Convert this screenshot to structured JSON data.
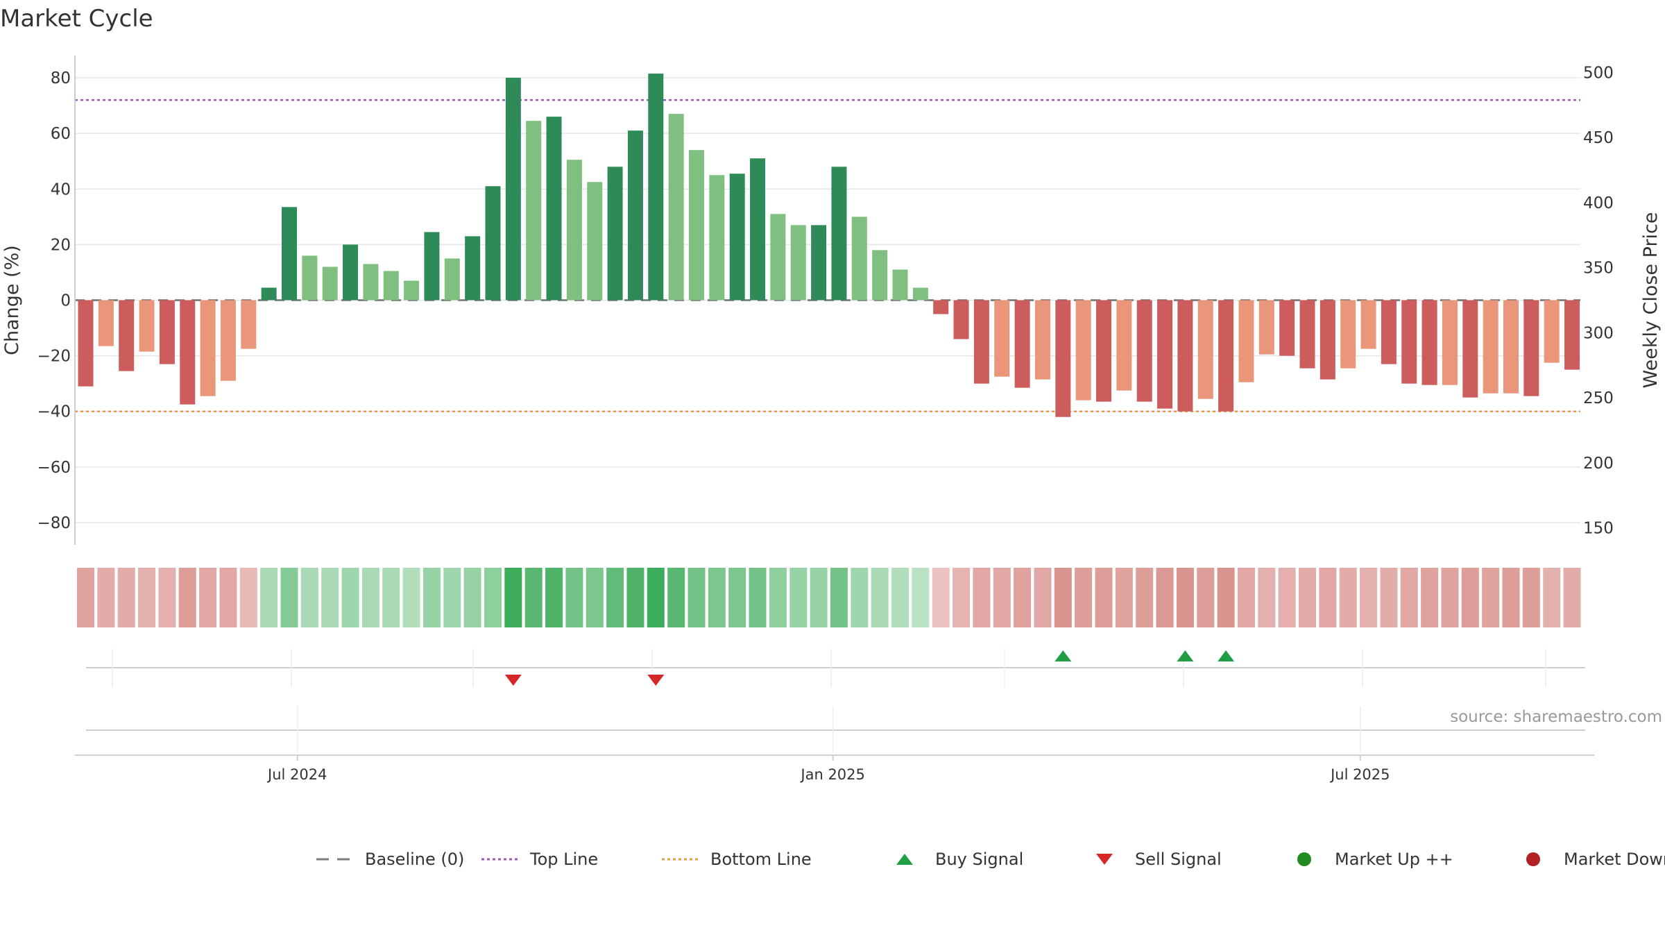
{
  "chart_data": {
    "type": "bar",
    "title": "Market Cycle",
    "ylabel": "Change (%)",
    "y2label": "Weekly Close Price",
    "ylim": [
      -88,
      88
    ],
    "y2lim": [
      137,
      513
    ],
    "yticks": [
      80,
      60,
      40,
      20,
      0,
      -20,
      -40,
      -60,
      -80
    ],
    "yticklabels": [
      "80",
      "60",
      "40",
      "20",
      "0",
      "−20",
      "−40",
      "−60",
      "−80"
    ],
    "y2ticks": [
      500,
      450,
      400,
      350,
      300,
      250,
      200,
      150
    ],
    "y2ticklabels": [
      "500",
      "450",
      "400",
      "350",
      "300",
      "250",
      "200",
      "150"
    ],
    "top_line": 72,
    "bottom_line": -40,
    "baseline": 0,
    "xticks": [
      {
        "label": "Jul 2024",
        "index": 10.4
      },
      {
        "label": "Jan 2025",
        "index": 36.7
      },
      {
        "label": "Jul 2025",
        "index": 62.6
      }
    ],
    "values": [
      -31,
      -16.5,
      -25.5,
      -18.5,
      -23,
      -37.5,
      -34.5,
      -29,
      -17.5,
      4.5,
      33.5,
      16,
      12,
      20,
      13,
      10.5,
      7,
      24.5,
      15,
      23,
      41,
      80,
      64.5,
      66,
      50.5,
      42.5,
      48,
      61,
      81.5,
      67,
      54,
      45,
      45.5,
      51,
      31,
      27,
      27,
      48,
      30,
      18,
      11,
      4.5,
      -5,
      -14,
      -30,
      -27.5,
      -31.5,
      -28.5,
      -42,
      -36,
      -36.5,
      -32.5,
      -36.5,
      -39,
      -40,
      -35.5,
      -40,
      -29.5,
      -19.5,
      -20,
      -24.5,
      -28.5,
      -24.5,
      -17.5,
      -23,
      -30,
      -30.5,
      -30.5,
      -35,
      -33.5,
      -33.5,
      -34.5,
      -22.5,
      -25
    ],
    "strong": [
      1,
      0,
      1,
      0,
      1,
      1,
      0,
      0,
      0,
      1,
      1,
      0,
      0,
      1,
      0,
      0,
      0,
      1,
      0,
      1,
      1,
      1,
      0,
      1,
      0,
      0,
      1,
      1,
      1,
      0,
      0,
      0,
      1,
      1,
      0,
      0,
      1,
      1,
      0,
      0,
      0,
      0,
      1,
      1,
      1,
      0,
      1,
      0,
      1,
      0,
      1,
      0,
      1,
      1,
      1,
      0,
      1,
      0,
      0,
      1,
      1,
      1,
      0,
      0,
      1,
      1,
      1,
      0,
      1,
      0,
      0,
      1,
      0,
      1
    ],
    "heat": [
      -0.55,
      -0.45,
      -0.45,
      -0.4,
      -0.4,
      -0.6,
      -0.5,
      -0.5,
      -0.3,
      0.35,
      0.55,
      0.35,
      0.35,
      0.4,
      0.35,
      0.35,
      0.3,
      0.45,
      0.4,
      0.45,
      0.5,
      0.95,
      0.8,
      0.85,
      0.65,
      0.6,
      0.75,
      0.85,
      0.95,
      0.8,
      0.65,
      0.6,
      0.6,
      0.65,
      0.5,
      0.45,
      0.45,
      0.65,
      0.4,
      0.35,
      0.3,
      0.25,
      -0.2,
      -0.35,
      -0.5,
      -0.5,
      -0.55,
      -0.5,
      -0.7,
      -0.6,
      -0.6,
      -0.55,
      -0.6,
      -0.65,
      -0.7,
      -0.6,
      -0.7,
      -0.5,
      -0.4,
      -0.4,
      -0.45,
      -0.5,
      -0.45,
      -0.4,
      -0.45,
      -0.5,
      -0.55,
      -0.55,
      -0.6,
      -0.55,
      -0.6,
      -0.6,
      -0.4,
      -0.45
    ],
    "buy_signals": [
      48,
      54,
      56
    ],
    "sell_signals": [
      21,
      28
    ],
    "source": "source: sharemaestro.com",
    "legend": [
      {
        "label": "Baseline (0)",
        "kind": "dash",
        "color": "#7f7f7f"
      },
      {
        "label": "Top Line",
        "kind": "dot",
        "color": "#9b59b6"
      },
      {
        "label": "Bottom Line",
        "kind": "dot",
        "color": "#e69a50"
      },
      {
        "label": "Buy Signal",
        "kind": "tri-up",
        "color": "#1f9e46"
      },
      {
        "label": "Sell Signal",
        "kind": "tri-down",
        "color": "#d62728"
      },
      {
        "label": "Market Up ++",
        "kind": "circle",
        "color": "#228b22"
      },
      {
        "label": "Market Down --",
        "kind": "circle",
        "color": "#b22222"
      }
    ],
    "colors": {
      "pos_strong": "#2e8b57",
      "pos_weak": "#7fbf7f",
      "neg_strong": "#cd5c5c",
      "neg_weak": "#e9967a",
      "top_line": "#9b59b6",
      "bottom_line": "#e69a50",
      "grid": "#e5e5e5"
    }
  }
}
